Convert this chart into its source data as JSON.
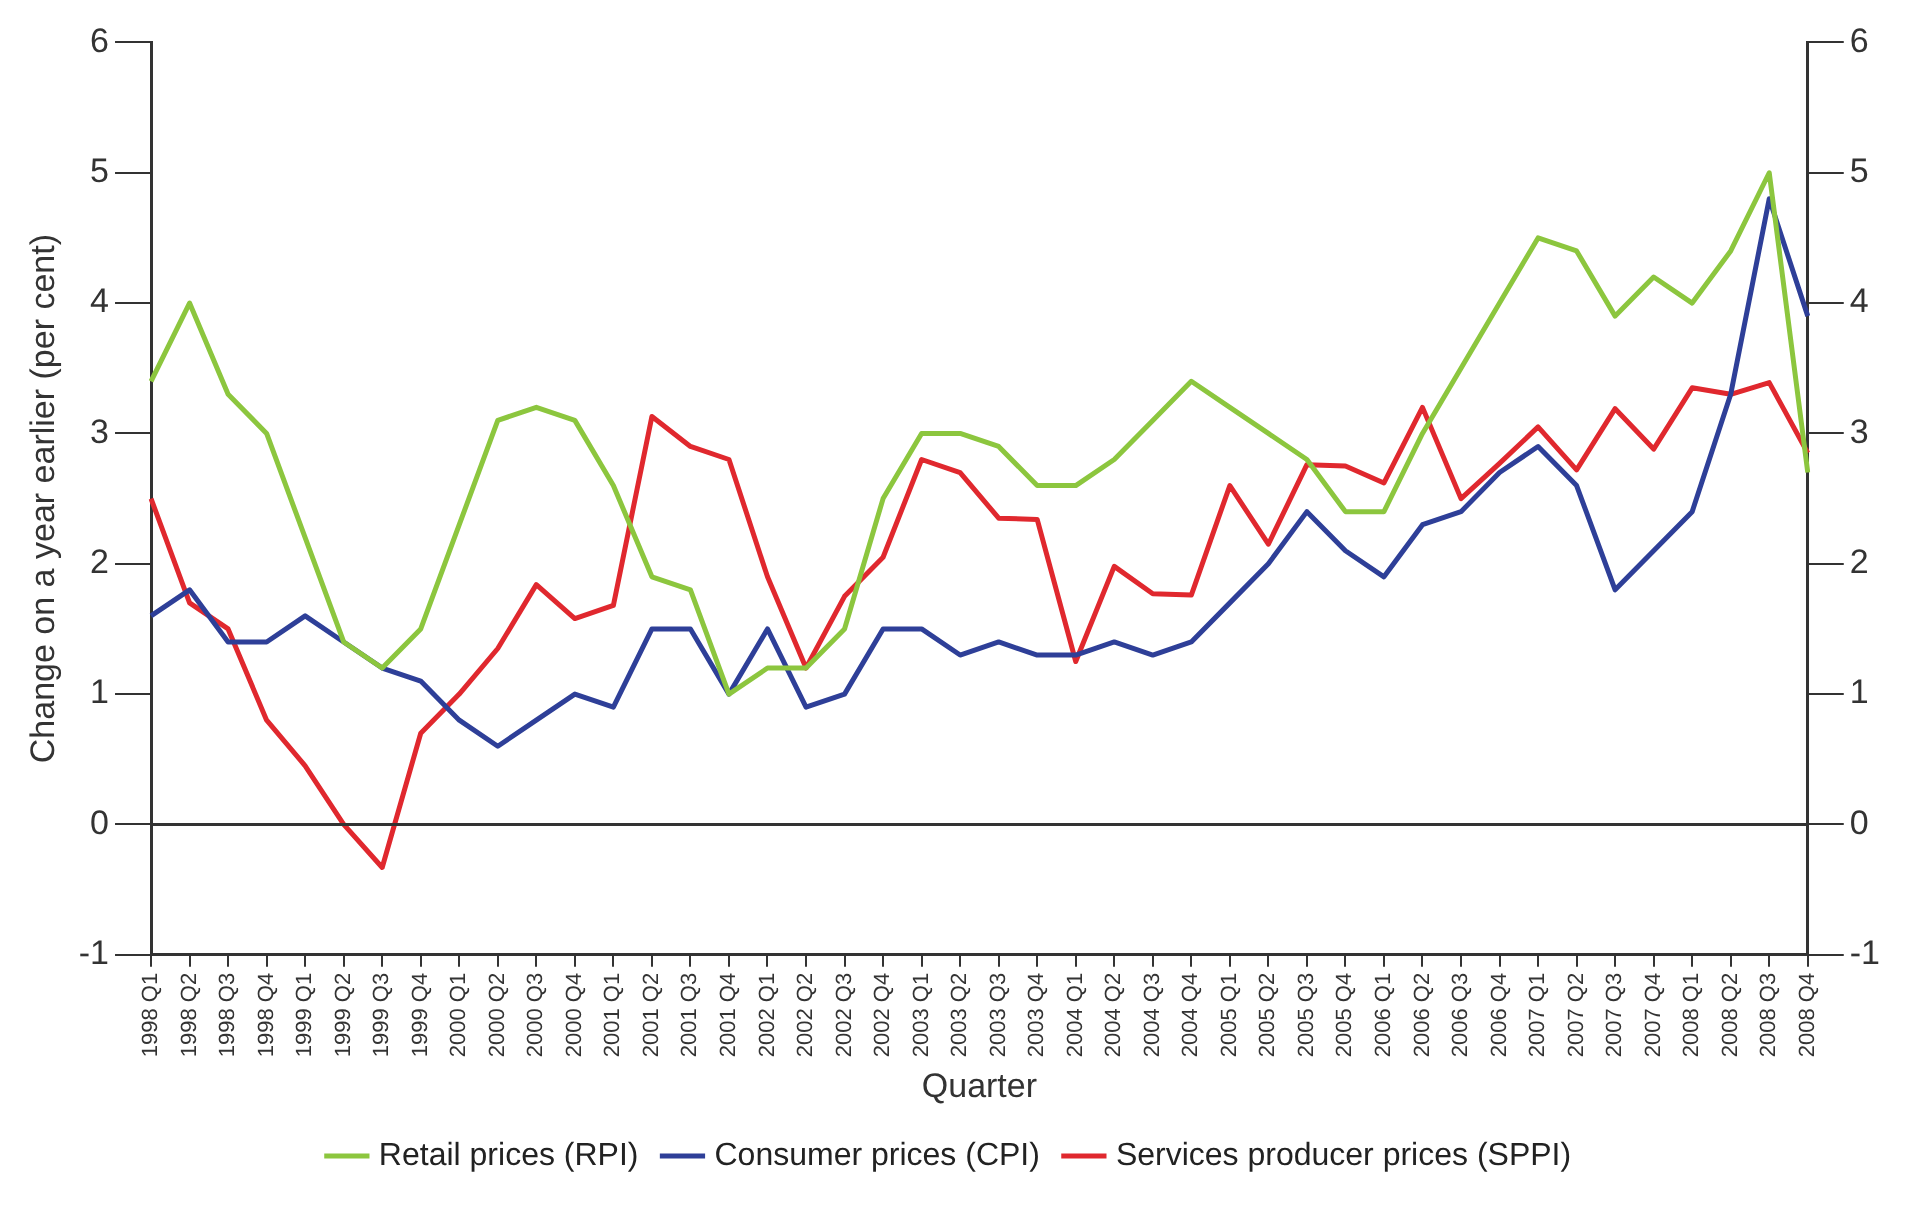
{
  "chart_data": {
    "type": "line",
    "xlabel": "Quarter",
    "ylabel": "Change on a year earlier (per cent)",
    "categories": [
      "1998 Q1",
      "1998 Q2",
      "1998 Q3",
      "1998 Q4",
      "1999 Q1",
      "1999 Q2",
      "1999 Q3",
      "1999 Q4",
      "2000 Q1",
      "2000 Q2",
      "2000 Q3",
      "2000 Q4",
      "2001 Q1",
      "2001 Q2",
      "2001 Q3",
      "2001 Q4",
      "2002 Q1",
      "2002 Q2",
      "2002 Q3",
      "2002 Q4",
      "2003 Q1",
      "2003 Q2",
      "2003 Q3",
      "2003 Q4",
      "2004 Q1",
      "2004 Q2",
      "2004 Q3",
      "2004 Q4",
      "2005 Q1",
      "2005 Q2",
      "2005 Q3",
      "2005 Q4",
      "2006 Q1",
      "2006 Q2",
      "2006 Q3",
      "2006 Q4",
      "2007 Q1",
      "2007 Q2",
      "2007 Q3",
      "2007 Q4",
      "2008 Q1",
      "2008 Q2",
      "2008 Q3",
      "2008 Q4"
    ],
    "series": [
      {
        "name": "Retail prices (RPI)",
        "color": "#8cc63e",
        "values": [
          3.4,
          4.0,
          3.3,
          3.0,
          2.2,
          1.4,
          1.2,
          1.5,
          2.3,
          3.1,
          3.2,
          3.1,
          2.6,
          1.9,
          1.8,
          1.0,
          1.2,
          1.2,
          1.5,
          2.5,
          3.0,
          3.0,
          2.9,
          2.6,
          2.6,
          2.8,
          3.1,
          3.4,
          3.2,
          3.0,
          2.8,
          2.4,
          2.4,
          3.0,
          3.5,
          4.0,
          4.5,
          4.4,
          3.9,
          4.2,
          4.0,
          4.4,
          5.0,
          2.7
        ]
      },
      {
        "name": "Consumer prices (CPI)",
        "color": "#2e3f98",
        "values": [
          1.6,
          1.8,
          1.4,
          1.4,
          1.6,
          1.4,
          1.2,
          1.1,
          0.8,
          0.6,
          0.8,
          1.0,
          0.9,
          1.5,
          1.5,
          1.0,
          1.5,
          0.9,
          1.0,
          1.5,
          1.5,
          1.3,
          1.4,
          1.3,
          1.3,
          1.4,
          1.3,
          1.4,
          1.7,
          2.0,
          2.4,
          2.1,
          1.9,
          2.3,
          2.4,
          2.7,
          2.9,
          2.6,
          1.8,
          2.1,
          2.4,
          3.3,
          4.8,
          3.9
        ]
      },
      {
        "name": "Services producer prices (SPPI)",
        "color": "#e0282e",
        "values": [
          2.5,
          1.7,
          1.5,
          0.8,
          0.45,
          0.0,
          -0.33,
          0.7,
          1.0,
          1.35,
          1.84,
          1.58,
          1.68,
          3.13,
          2.9,
          2.8,
          1.9,
          1.2,
          1.75,
          2.05,
          2.8,
          2.7,
          2.35,
          2.34,
          1.25,
          1.98,
          1.77,
          1.76,
          2.6,
          2.15,
          2.76,
          2.75,
          2.62,
          3.2,
          2.5,
          2.77,
          3.05,
          2.72,
          3.19,
          2.88,
          3.35,
          3.3,
          3.39,
          2.85
        ]
      }
    ],
    "ylim": [
      -1,
      6
    ],
    "yticks": [
      -1,
      0,
      1,
      2,
      3,
      4,
      5,
      6
    ],
    "y2lim": [
      -1,
      6
    ],
    "y2ticks": [
      -1,
      0,
      1,
      2,
      3,
      4,
      5,
      6
    ],
    "ref_lines": [
      {
        "axis": "y",
        "value": 0
      }
    ],
    "grid": false,
    "legend": "bottom",
    "marker": "none",
    "line_style": "solid"
  }
}
